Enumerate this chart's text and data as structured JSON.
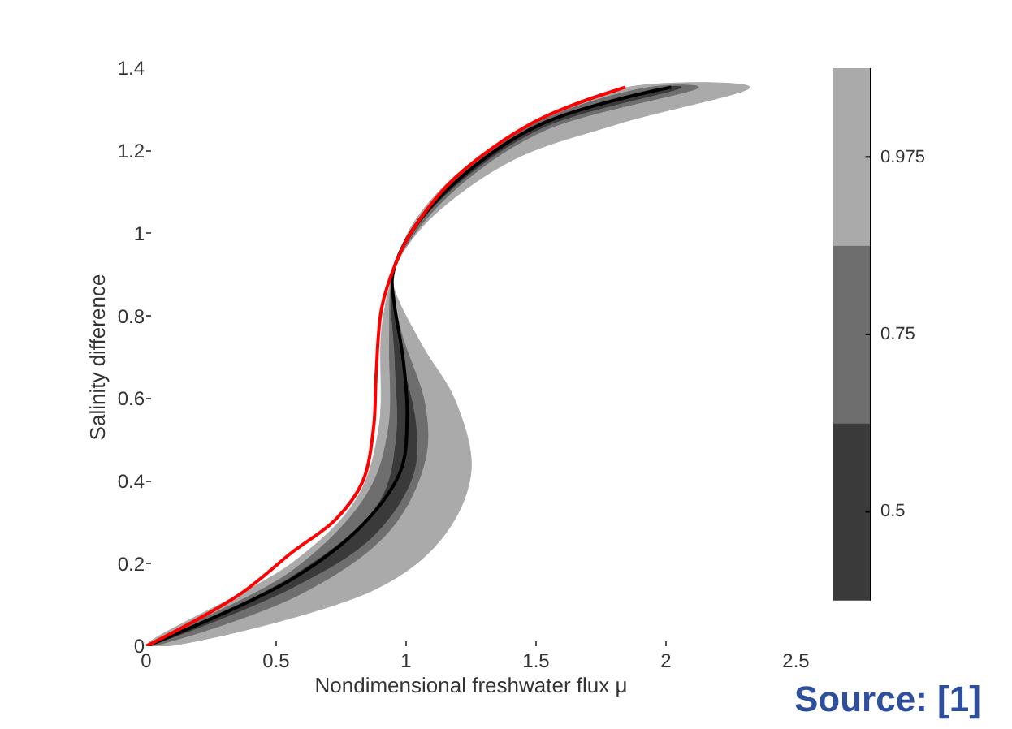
{
  "chart_data": {
    "type": "line",
    "xlabel": "Nondimensional freshwater flux μ",
    "ylabel": "Salinity difference",
    "xlim": [
      0,
      2.5
    ],
    "ylim": [
      0,
      1.4
    ],
    "xticks": [
      0,
      0.5,
      1,
      1.5,
      2,
      2.5
    ],
    "yticks": [
      0,
      0.2,
      0.4,
      0.6,
      0.8,
      1,
      1.2,
      1.4
    ],
    "grid": false,
    "legend": "right",
    "annotations": [
      "Source: [1]"
    ],
    "series": [
      {
        "name": "0.975",
        "type": "area",
        "color": "#aaaaaa",
        "x": [
          0,
          0.5625,
          0.8125,
          0.896,
          0.906,
          0.948,
          1.02,
          1.19,
          1.5,
          1.854,
          2.323,
          1.813,
          1.396,
          1.063,
          0.948,
          0.958,
          1.0625,
          1.188,
          1.25,
          1.146,
          0.875,
          0
        ],
        "values": [
          0,
          0.202,
          0.36,
          0.53,
          0.766,
          0.898,
          1.016,
          1.14,
          1.272,
          1.354,
          1.354,
          1.265,
          1.173,
          1.016,
          0.898,
          0.858,
          0.727,
          0.596,
          0.425,
          0.268,
          0.136,
          0
        ]
      },
      {
        "name": "0.75",
        "type": "area",
        "color": "#6e6e6e",
        "x": [
          0,
          0.5625,
          0.854,
          0.933,
          0.936,
          0.948,
          1.02,
          1.2,
          1.51,
          1.94,
          2.125,
          1.542,
          1.229,
          1.031,
          0.948,
          0.979,
          1.073,
          1.073,
          0.938,
          0.583,
          0
        ],
        "values": [
          0,
          0.183,
          0.373,
          0.53,
          0.74,
          0.898,
          1.01,
          1.137,
          1.27,
          1.354,
          1.354,
          1.252,
          1.128,
          0.998,
          0.898,
          0.766,
          0.583,
          0.451,
          0.281,
          0.123,
          0
        ]
      },
      {
        "name": "0.5",
        "type": "area",
        "color": "#3a3a3a",
        "x": [
          0,
          0.5625,
          0.896,
          0.963,
          0.958,
          0.948,
          1.02,
          1.208,
          1.521,
          2.0,
          2.06,
          1.531,
          1.219,
          1.025,
          0.948,
          0.969,
          1.038,
          1.025,
          0.875,
          0.5625,
          0
        ],
        "values": [
          0,
          0.169,
          0.347,
          0.504,
          0.688,
          0.898,
          1.003,
          1.134,
          1.265,
          1.354,
          1.354,
          1.258,
          1.131,
          1.003,
          0.898,
          0.74,
          0.53,
          0.412,
          0.268,
          0.142,
          0
        ]
      },
      {
        "color": "#000000",
        "x": [
          0,
          0.5625,
          0.833,
          0.979,
          1.004,
          0.99,
          0.954,
          0.948,
          1.02,
          1.208,
          1.521,
          2.02
        ],
        "values": [
          0,
          0.163,
          0.294,
          0.425,
          0.556,
          0.688,
          0.832,
          0.898,
          1.003,
          1.134,
          1.265,
          1.354
        ]
      },
      {
        "color": "#ff0000",
        "x": [
          0,
          0.354,
          0.5625,
          0.729,
          0.833,
          0.875,
          0.885,
          0.906,
          0.958,
          1.02,
          1.188,
          1.5,
          1.844
        ],
        "values": [
          0,
          0.123,
          0.228,
          0.307,
          0.399,
          0.53,
          0.661,
          0.819,
          0.924,
          1.003,
          1.134,
          1.272,
          1.354
        ]
      }
    ]
  }
}
